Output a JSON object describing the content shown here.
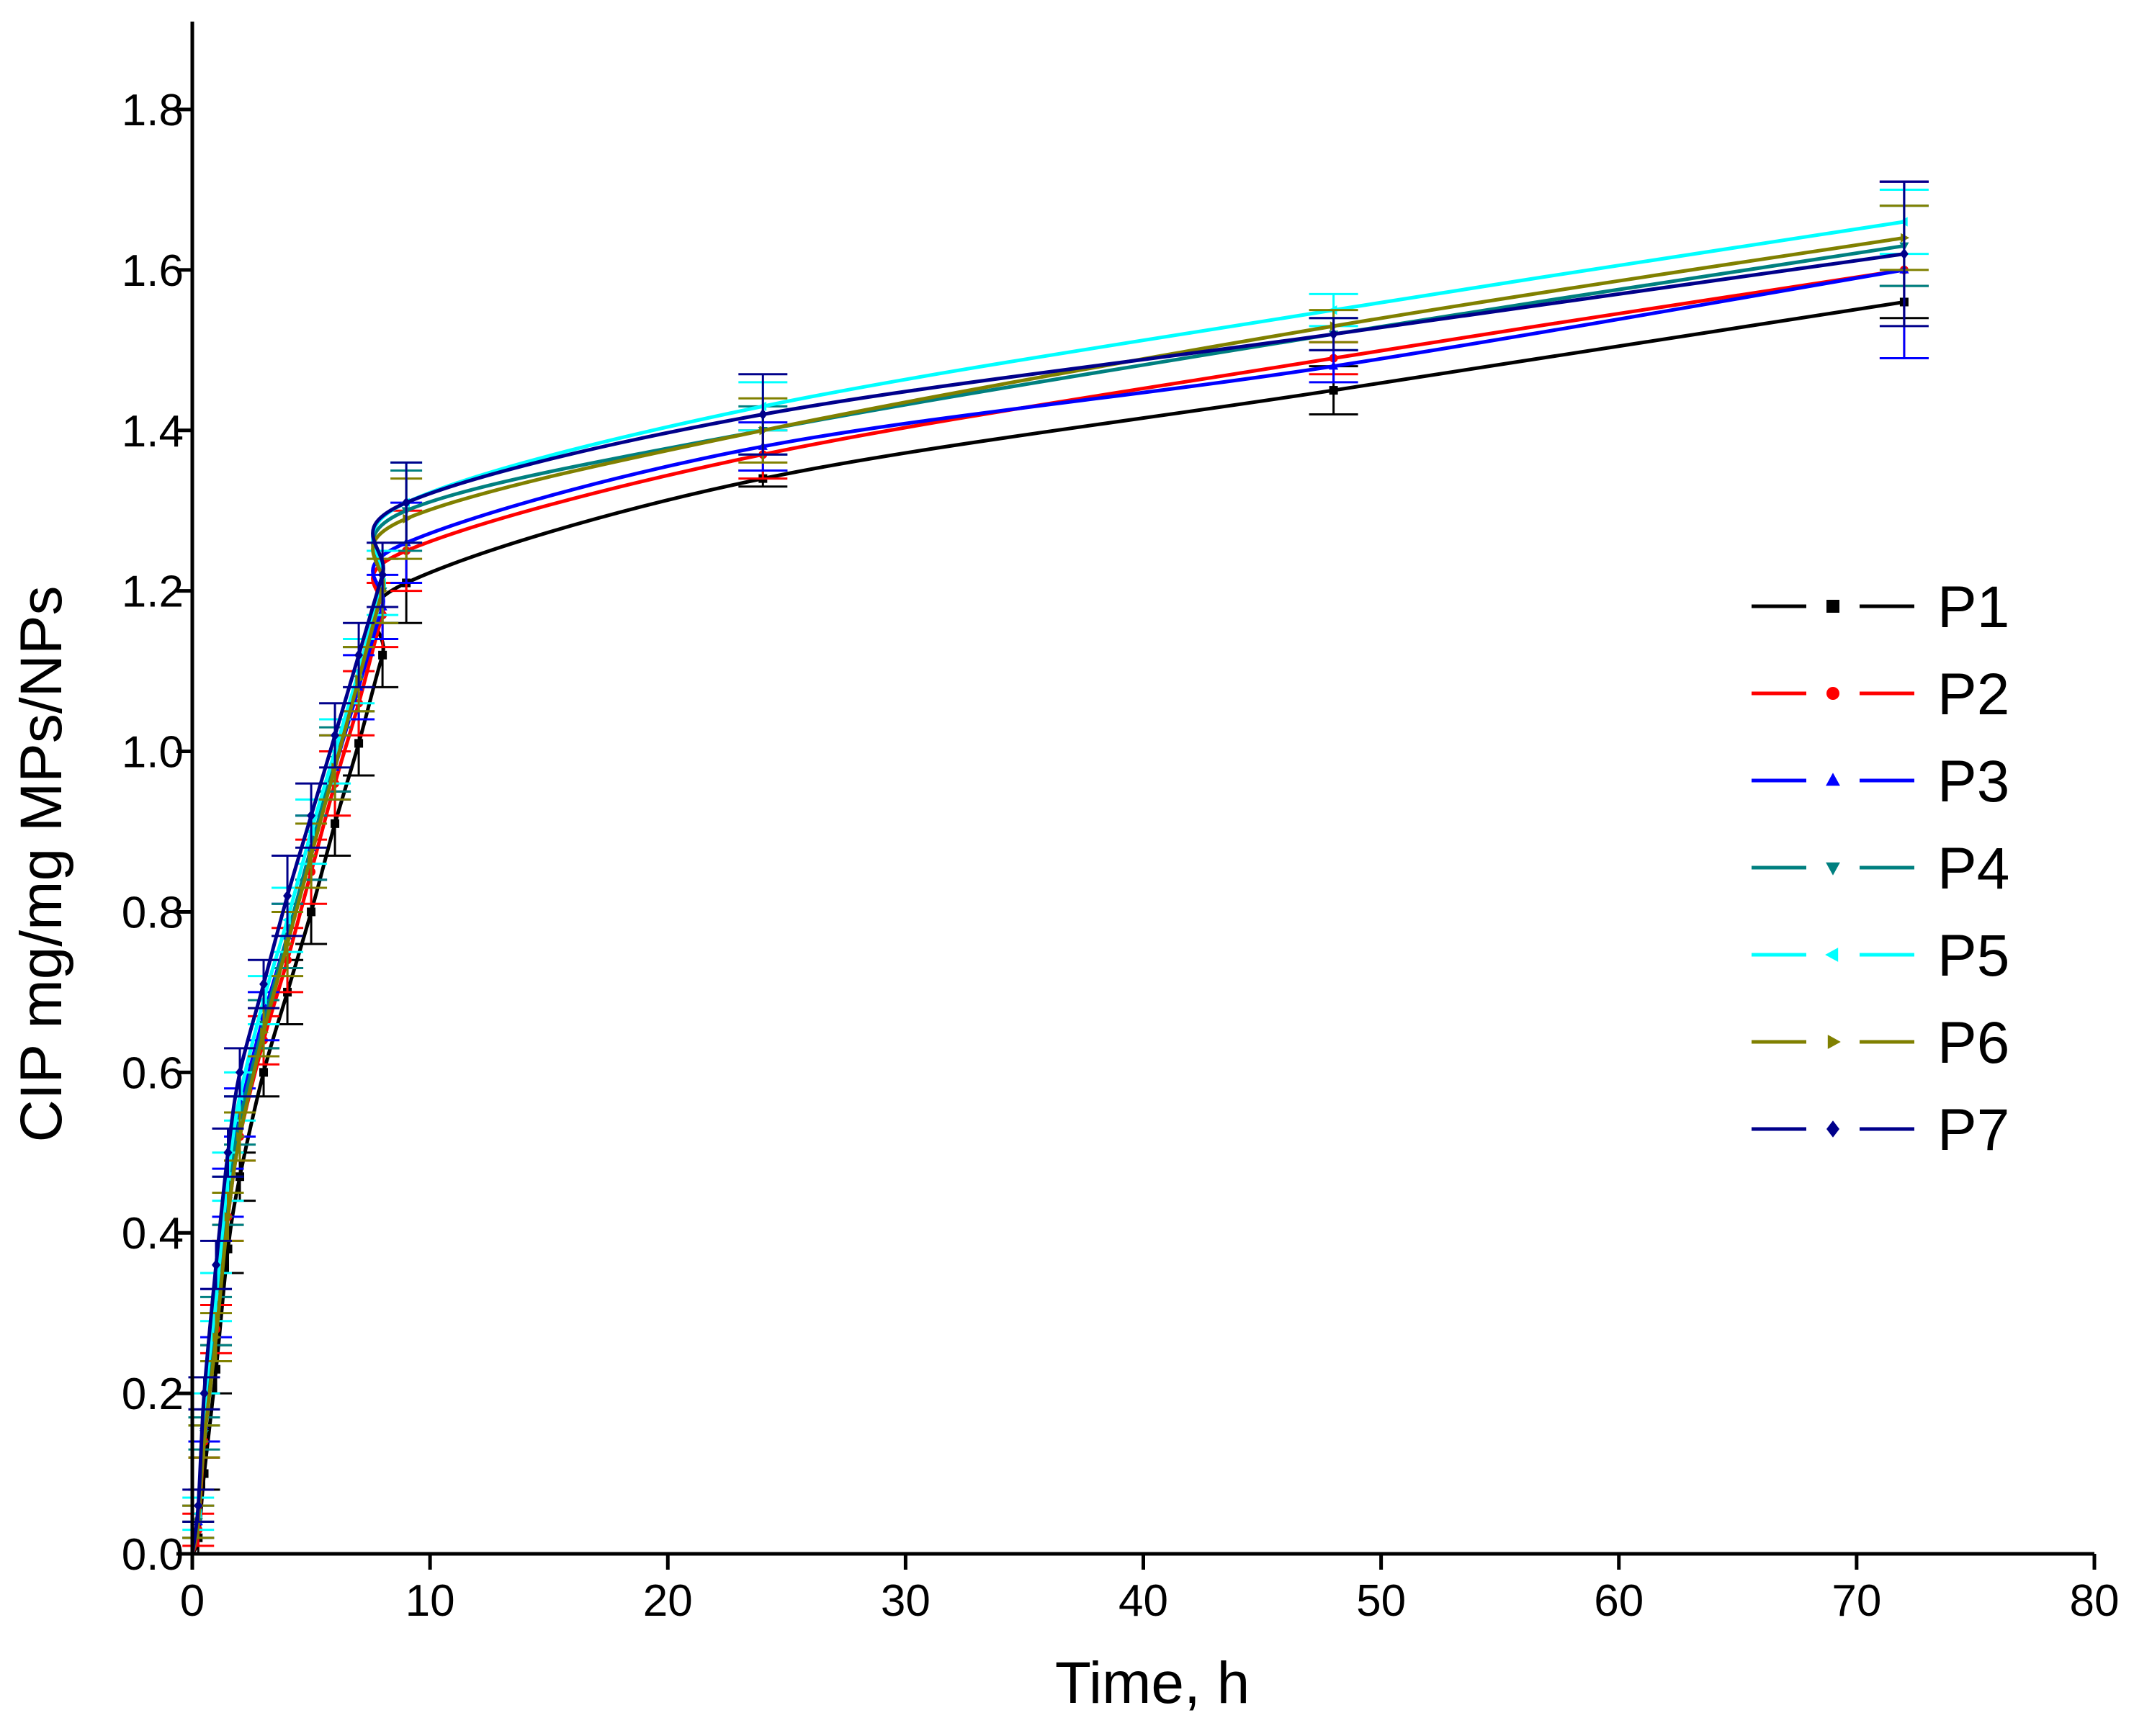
{
  "chart_data": {
    "type": "line",
    "title": "",
    "xlabel": "Time, h",
    "ylabel": "CIP mg/mg MPs/NPs",
    "xlim": [
      0,
      80
    ],
    "ylim": [
      0,
      1.9
    ],
    "xticks": [
      0,
      10,
      20,
      30,
      40,
      50,
      60,
      70,
      80
    ],
    "xtick_labels": [
      "0",
      "10",
      "20",
      "30",
      "40",
      "50",
      "60",
      "70",
      "80"
    ],
    "yticks": [
      0.0,
      0.2,
      0.4,
      0.6,
      0.8,
      1.0,
      1.2,
      1.4,
      1.6,
      1.8
    ],
    "ytick_labels": [
      "0.0",
      "0.2",
      "0.4",
      "0.6",
      "0.8",
      "1.0",
      "1.2",
      "1.4",
      "1.6",
      "1.8"
    ],
    "grid": false,
    "legend_position": "right",
    "x": [
      0.25,
      0.5,
      1,
      1.5,
      2,
      3,
      4,
      5,
      6,
      7,
      8,
      9,
      24,
      48,
      72
    ],
    "series": [
      {
        "name": "P1",
        "color": "#000000",
        "marker": "square",
        "values": [
          0.02,
          0.1,
          0.23,
          0.38,
          0.47,
          0.6,
          0.7,
          0.8,
          0.91,
          1.01,
          1.12,
          1.21,
          1.34,
          1.45,
          1.56
        ],
        "errors": [
          0.02,
          0.02,
          0.03,
          0.03,
          0.03,
          0.03,
          0.04,
          0.04,
          0.04,
          0.04,
          0.04,
          0.05,
          0.01,
          0.03,
          0.02
        ]
      },
      {
        "name": "P2",
        "color": "#ff0000",
        "marker": "circle",
        "values": [
          0.03,
          0.14,
          0.28,
          0.42,
          0.52,
          0.64,
          0.74,
          0.85,
          0.96,
          1.06,
          1.17,
          1.25,
          1.37,
          1.49,
          1.6
        ],
        "errors": [
          0.02,
          0.02,
          0.03,
          0.03,
          0.03,
          0.03,
          0.04,
          0.04,
          0.04,
          0.04,
          0.04,
          0.05,
          0.03,
          0.02,
          0.11
        ]
      },
      {
        "name": "P3",
        "color": "#0000ff",
        "marker": "triangle-up",
        "values": [
          0.04,
          0.16,
          0.3,
          0.45,
          0.55,
          0.67,
          0.77,
          0.88,
          0.98,
          1.08,
          1.18,
          1.26,
          1.38,
          1.48,
          1.6
        ],
        "errors": [
          0.02,
          0.02,
          0.03,
          0.03,
          0.03,
          0.03,
          0.04,
          0.04,
          0.04,
          0.04,
          0.04,
          0.05,
          0.03,
          0.02,
          0.11
        ]
      },
      {
        "name": "P4",
        "color": "#008080",
        "marker": "triangle-down",
        "values": [
          0.04,
          0.15,
          0.29,
          0.44,
          0.54,
          0.66,
          0.77,
          0.88,
          0.99,
          1.09,
          1.2,
          1.3,
          1.4,
          1.52,
          1.63
        ],
        "errors": [
          0.02,
          0.02,
          0.03,
          0.03,
          0.03,
          0.03,
          0.04,
          0.04,
          0.04,
          0.04,
          0.04,
          0.05,
          0.03,
          0.02,
          0.05
        ]
      },
      {
        "name": "P5",
        "color": "#00ffff",
        "marker": "triangle-left",
        "values": [
          0.05,
          0.18,
          0.32,
          0.47,
          0.57,
          0.69,
          0.79,
          0.9,
          1.0,
          1.1,
          1.21,
          1.31,
          1.43,
          1.55,
          1.66
        ],
        "errors": [
          0.02,
          0.02,
          0.03,
          0.03,
          0.03,
          0.03,
          0.04,
          0.04,
          0.04,
          0.04,
          0.04,
          0.05,
          0.03,
          0.02,
          0.04
        ]
      },
      {
        "name": "P6",
        "color": "#808000",
        "marker": "triangle-right",
        "values": [
          0.04,
          0.14,
          0.27,
          0.42,
          0.52,
          0.65,
          0.76,
          0.87,
          0.98,
          1.09,
          1.2,
          1.29,
          1.4,
          1.53,
          1.64
        ],
        "errors": [
          0.02,
          0.02,
          0.03,
          0.03,
          0.03,
          0.03,
          0.04,
          0.04,
          0.04,
          0.04,
          0.04,
          0.05,
          0.04,
          0.02,
          0.04
        ]
      },
      {
        "name": "P7",
        "color": "#00008b",
        "marker": "diamond",
        "values": [
          0.06,
          0.2,
          0.36,
          0.5,
          0.6,
          0.71,
          0.82,
          0.92,
          1.02,
          1.12,
          1.22,
          1.31,
          1.42,
          1.52,
          1.62
        ],
        "errors": [
          0.02,
          0.02,
          0.03,
          0.03,
          0.03,
          0.03,
          0.05,
          0.04,
          0.04,
          0.04,
          0.04,
          0.05,
          0.05,
          0.02,
          0.09
        ]
      }
    ]
  }
}
